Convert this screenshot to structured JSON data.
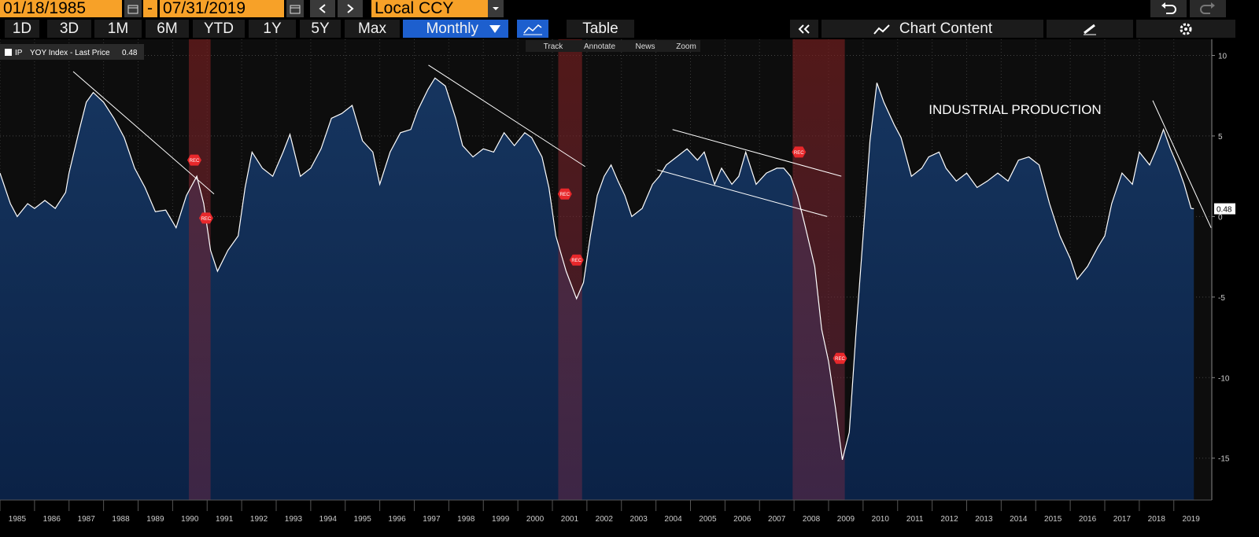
{
  "toolbar": {
    "start_date": "01/18/1985",
    "range_separator": "-",
    "end_date": "07/31/2019",
    "currency": "Local CCY",
    "periods": [
      "1D",
      "3D",
      "1M",
      "6M",
      "YTD",
      "1Y",
      "5Y",
      "Max"
    ],
    "frequency": "Monthly",
    "view": "Table",
    "panel": "Chart Content",
    "tools": [
      "Track",
      "Annotate",
      "News",
      "Zoom"
    ]
  },
  "chart_data": {
    "type": "area",
    "annotation": "INDUSTRIAL PRODUCTION",
    "legend_text": "YOY Index - Last Price",
    "last_price": 0.48,
    "x": [
      1985.0,
      1985.3,
      1985.5,
      1985.8,
      1986.0,
      1986.3,
      1986.6,
      1986.9,
      1987.0,
      1987.3,
      1987.5,
      1987.7,
      1988.0,
      1988.3,
      1988.6,
      1988.9,
      1989.2,
      1989.5,
      1989.8,
      1990.1,
      1990.4,
      1990.7,
      1990.9,
      1991.1,
      1991.3,
      1991.6,
      1991.9,
      1992.1,
      1992.3,
      1992.6,
      1992.9,
      1993.2,
      1993.4,
      1993.7,
      1994.0,
      1994.3,
      1994.6,
      1994.9,
      1995.2,
      1995.5,
      1995.8,
      1996.0,
      1996.3,
      1996.6,
      1996.9,
      1997.1,
      1997.4,
      1997.6,
      1997.9,
      1998.2,
      1998.4,
      1998.7,
      1999.0,
      1999.3,
      1999.6,
      1999.9,
      2000.2,
      2000.4,
      2000.7,
      2000.9,
      2001.1,
      2001.4,
      2001.7,
      2001.9,
      2002.1,
      2002.3,
      2002.5,
      2002.7,
      2002.9,
      2003.1,
      2003.3,
      2003.6,
      2003.9,
      2004.1,
      2004.3,
      2004.6,
      2004.9,
      2005.2,
      2005.4,
      2005.7,
      2005.9,
      2006.2,
      2006.4,
      2006.6,
      2006.9,
      2007.2,
      2007.5,
      2007.7,
      2007.9,
      2008.1,
      2008.3,
      2008.6,
      2008.8,
      2009.0,
      2009.2,
      2009.4,
      2009.6,
      2009.8,
      2010.0,
      2010.2,
      2010.4,
      2010.6,
      2010.9,
      2011.1,
      2011.4,
      2011.7,
      2011.9,
      2012.2,
      2012.4,
      2012.7,
      2013.0,
      2013.3,
      2013.6,
      2013.9,
      2014.2,
      2014.5,
      2014.8,
      2015.1,
      2015.4,
      2015.7,
      2016.0,
      2016.2,
      2016.5,
      2016.8,
      2017.0,
      2017.2,
      2017.5,
      2017.8,
      2018.0,
      2018.3,
      2018.5,
      2018.7,
      2018.9,
      2019.1,
      2019.3,
      2019.5,
      2019.58
    ],
    "series": [
      {
        "name": "IP",
        "color": "#ffffff",
        "fill": "#12305a",
        "values": [
          2.7,
          0.8,
          0.0,
          0.8,
          0.5,
          1.0,
          0.5,
          1.5,
          2.7,
          5.4,
          7.1,
          7.7,
          7.1,
          6.1,
          4.9,
          3.0,
          1.8,
          0.3,
          0.4,
          -0.7,
          1.3,
          2.5,
          0.8,
          -2.1,
          -3.4,
          -2.1,
          -1.2,
          1.8,
          4.0,
          3.0,
          2.5,
          4.0,
          5.1,
          2.5,
          3.0,
          4.2,
          6.1,
          6.4,
          6.9,
          4.7,
          4.0,
          2.0,
          4.0,
          5.2,
          5.4,
          6.6,
          7.9,
          8.6,
          8.1,
          6.1,
          4.4,
          3.7,
          4.2,
          4.0,
          5.2,
          4.4,
          5.2,
          4.9,
          3.7,
          1.8,
          -1.2,
          -3.4,
          -5.1,
          -4.1,
          -1.2,
          1.3,
          2.5,
          3.2,
          2.2,
          1.3,
          0.0,
          0.5,
          2.0,
          2.5,
          3.2,
          3.7,
          4.2,
          3.5,
          4.0,
          2.0,
          3.0,
          2.0,
          2.5,
          4.0,
          2.0,
          2.7,
          3.0,
          3.0,
          2.5,
          1.3,
          -0.4,
          -3.1,
          -7.0,
          -9.0,
          -11.9,
          -15.1,
          -13.4,
          -7.0,
          -1.2,
          4.7,
          8.3,
          7.1,
          5.7,
          4.9,
          2.5,
          3.0,
          3.7,
          4.0,
          3.0,
          2.2,
          2.7,
          1.8,
          2.2,
          2.7,
          2.2,
          3.5,
          3.7,
          3.2,
          0.8,
          -1.2,
          -2.6,
          -3.9,
          -3.1,
          -1.9,
          -1.2,
          0.8,
          2.7,
          2.0,
          4.0,
          3.2,
          4.2,
          5.4,
          4.2,
          3.2,
          2.0,
          0.5,
          0.48
        ]
      }
    ],
    "recessions": [
      [
        1990.47,
        1991.1
      ],
      [
        2001.17,
        2001.86
      ],
      [
        2007.96,
        2009.47
      ]
    ],
    "recession_markers": {
      "label": "REC",
      "x": [
        1990.63,
        1990.97,
        2001.36,
        2001.7,
        2008.14,
        2009.33
      ],
      "y": [
        3.5,
        -0.1,
        1.4,
        -2.7,
        4.0,
        -8.8
      ]
    },
    "trendlines": [
      [
        1987.12,
        9.0,
        1991.2,
        1.4
      ],
      [
        1997.41,
        9.4,
        2001.95,
        3.1
      ],
      [
        2004.48,
        5.4,
        2009.37,
        2.5
      ],
      [
        2004.04,
        2.9,
        2008.96,
        0.0
      ],
      [
        2018.39,
        7.2,
        2020.08,
        -0.7
      ]
    ],
    "xlim": [
      1985.0,
      2020.1
    ],
    "ylim": [
      -17.6,
      11.0
    ],
    "yticks": [
      10,
      5,
      0,
      -5,
      -10,
      -15
    ],
    "xticks": [
      {
        "value": 1985,
        "label": "1985"
      },
      {
        "value": 1986,
        "label": "1986"
      },
      {
        "value": 1987,
        "label": "1987"
      },
      {
        "value": 1988,
        "label": "1988"
      },
      {
        "value": 1989,
        "label": "1989"
      },
      {
        "value": 1990,
        "label": "1990"
      },
      {
        "value": 1991,
        "label": "1991"
      },
      {
        "value": 1992,
        "label": "1992"
      },
      {
        "value": 1993,
        "label": "1993"
      },
      {
        "value": 1994,
        "label": "1994"
      },
      {
        "value": 1995,
        "label": "1995"
      },
      {
        "value": 1996,
        "label": "1996"
      },
      {
        "value": 1997,
        "label": "1997"
      },
      {
        "value": 1998,
        "label": "1998"
      },
      {
        "value": 1999,
        "label": "1999"
      },
      {
        "value": 2000,
        "label": "2000"
      },
      {
        "value": 2001,
        "label": "2001"
      },
      {
        "value": 2002,
        "label": "2002"
      },
      {
        "value": 2003,
        "label": "2003"
      },
      {
        "value": 2004,
        "label": "2004"
      },
      {
        "value": 2005,
        "label": "2005"
      },
      {
        "value": 2006,
        "label": "2006"
      },
      {
        "value": 2007,
        "label": "2007"
      },
      {
        "value": 2008,
        "label": "2008"
      },
      {
        "value": 2009,
        "label": "2009"
      },
      {
        "value": 2010,
        "label": "2010"
      },
      {
        "value": 2011,
        "label": "2011"
      },
      {
        "value": 2012,
        "label": "2012"
      },
      {
        "value": 2013,
        "label": "2013"
      },
      {
        "value": 2014,
        "label": "2014"
      },
      {
        "value": 2015,
        "label": "2015"
      },
      {
        "value": 2016,
        "label": "2016"
      },
      {
        "value": 2017,
        "label": "2017"
      },
      {
        "value": 2018,
        "label": "2018"
      },
      {
        "value": 2019,
        "label": "2019"
      }
    ],
    "grid": true
  }
}
